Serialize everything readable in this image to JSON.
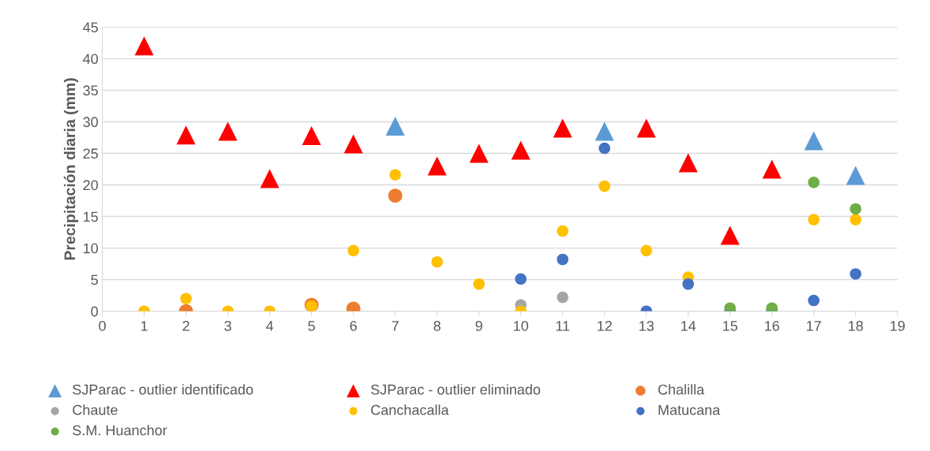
{
  "chart_data": {
    "type": "scatter",
    "ylabel": "Precipitación diaria (mm)",
    "xlim": [
      0,
      19
    ],
    "xticks": [
      0,
      1,
      2,
      3,
      4,
      5,
      6,
      7,
      8,
      9,
      10,
      11,
      12,
      13,
      14,
      15,
      16,
      17,
      18,
      19
    ],
    "ylim": [
      0,
      45
    ],
    "yticks": [
      0,
      5,
      10,
      15,
      20,
      25,
      30,
      35,
      40,
      45
    ],
    "grid": "y",
    "legend": "bottom",
    "series": [
      {
        "name": "SJParac - outlier identificado",
        "color": "#5b9bd5",
        "marker": "triangle",
        "x": [
          7,
          12,
          17,
          18
        ],
        "values": [
          29.3,
          28.5,
          27,
          21.5
        ]
      },
      {
        "name": "SJParac - outlier eliminado",
        "color": "#ff0000",
        "marker": "triangle",
        "x": [
          1,
          2,
          3,
          4,
          5,
          6,
          8,
          9,
          10,
          11,
          13,
          14,
          15,
          16
        ],
        "values": [
          42,
          27.9,
          28.5,
          21,
          27.8,
          26.5,
          23,
          25,
          25.5,
          29,
          29,
          23.5,
          12,
          22.5
        ]
      },
      {
        "name": "Chalilla",
        "color": "#ed7d31",
        "marker": "circle",
        "x": [
          2,
          5,
          6,
          7
        ],
        "values": [
          0,
          1,
          0.4,
          18.3
        ]
      },
      {
        "name": "Chaute",
        "color": "#a5a5a5",
        "marker": "circle",
        "x": [
          10,
          11
        ],
        "values": [
          1,
          2.2
        ]
      },
      {
        "name": "Canchacalla",
        "color": "#ffc000",
        "marker": "circle",
        "x": [
          1,
          2,
          3,
          4,
          5,
          6,
          7,
          8,
          9,
          10,
          11,
          12,
          13,
          14,
          17,
          18
        ],
        "values": [
          0,
          2,
          0,
          0,
          0.8,
          9.6,
          21.6,
          7.8,
          4.3,
          0,
          12.7,
          19.8,
          9.6,
          5.4,
          14.5,
          14.5
        ]
      },
      {
        "name": "Matucana",
        "color": "#4472c4",
        "marker": "circle",
        "x": [
          10,
          11,
          12,
          13,
          14,
          15,
          16,
          17,
          18
        ],
        "values": [
          5.1,
          8.2,
          25.8,
          0,
          4.3,
          0,
          0,
          1.7,
          5.9
        ]
      },
      {
        "name": "S.M. Huanchor",
        "color": "#70ad47",
        "marker": "circle",
        "x": [
          15,
          16,
          17,
          18
        ],
        "values": [
          0.5,
          0.5,
          20.4,
          16.2
        ]
      }
    ]
  }
}
